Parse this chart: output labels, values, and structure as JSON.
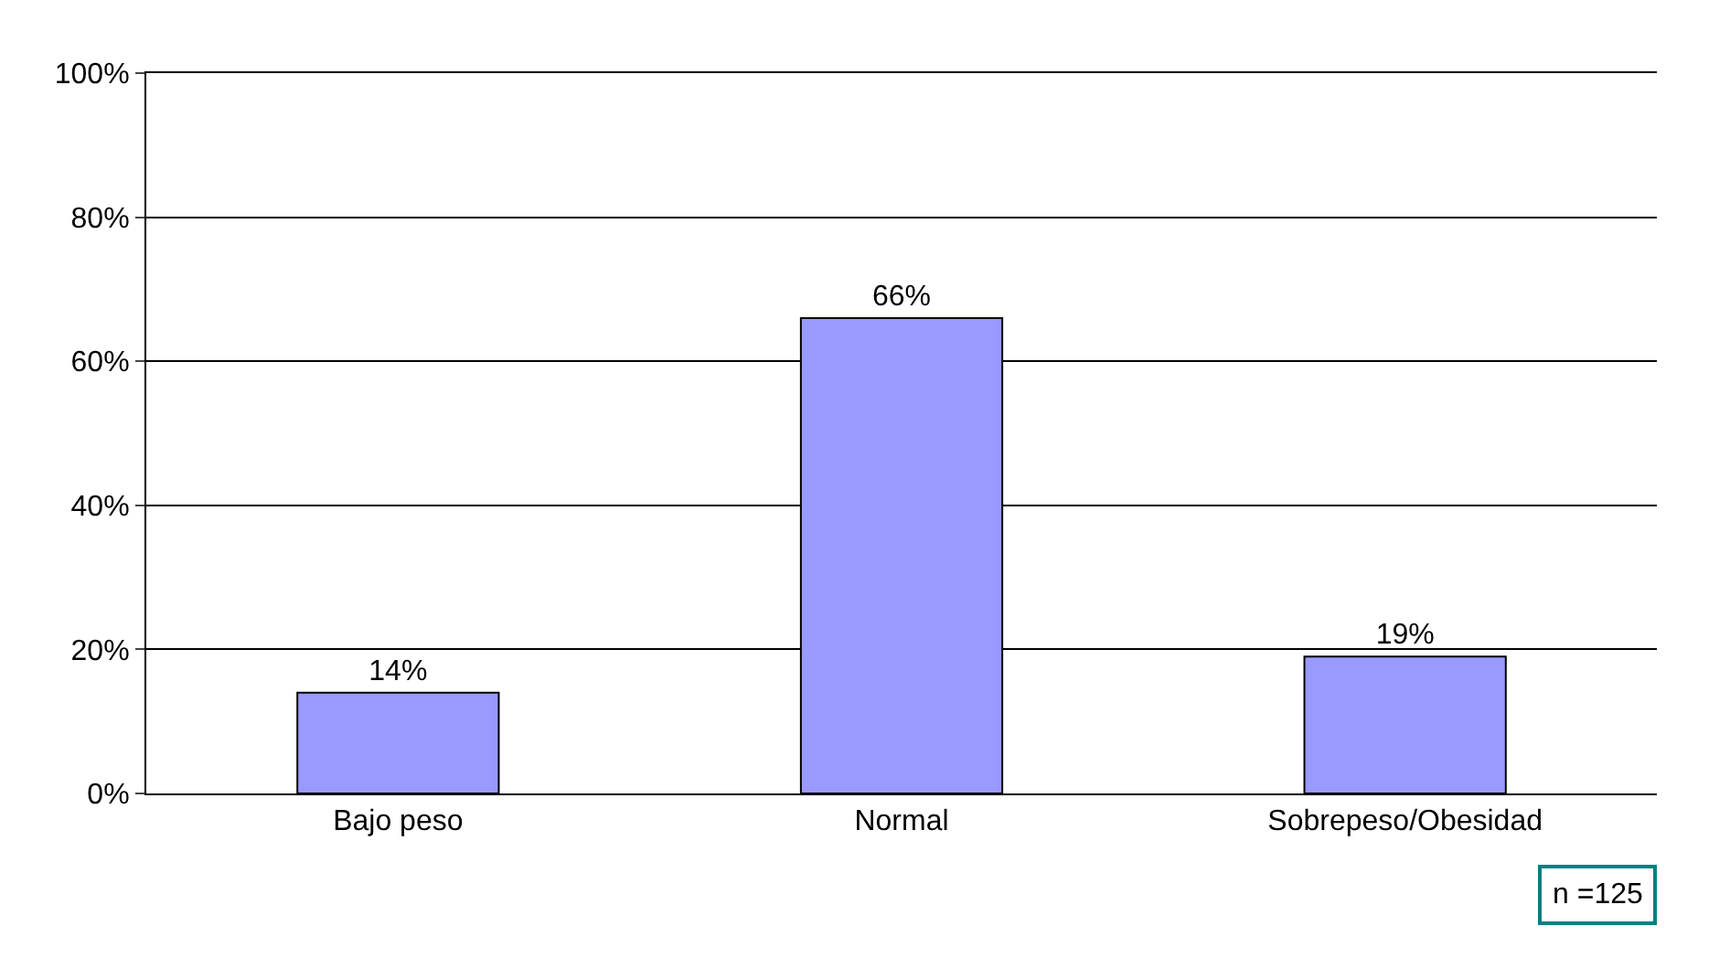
{
  "chart_data": {
    "type": "bar",
    "categories": [
      "Bajo peso",
      "Normal",
      "Sobrepeso/Obesidad"
    ],
    "values": [
      14,
      66,
      19
    ],
    "value_labels": [
      "14%",
      "66%",
      "19%"
    ],
    "color": "#9999ff",
    "ylim": [
      0,
      100
    ],
    "yticks": [
      {
        "value": 0,
        "label": "0%"
      },
      {
        "value": 20,
        "label": "20%"
      },
      {
        "value": 40,
        "label": "40%"
      },
      {
        "value": 60,
        "label": "60%"
      },
      {
        "value": 80,
        "label": "80%"
      },
      {
        "value": 100,
        "label": "100%"
      }
    ],
    "grid": "y",
    "annotations": [
      "n =125"
    ]
  }
}
